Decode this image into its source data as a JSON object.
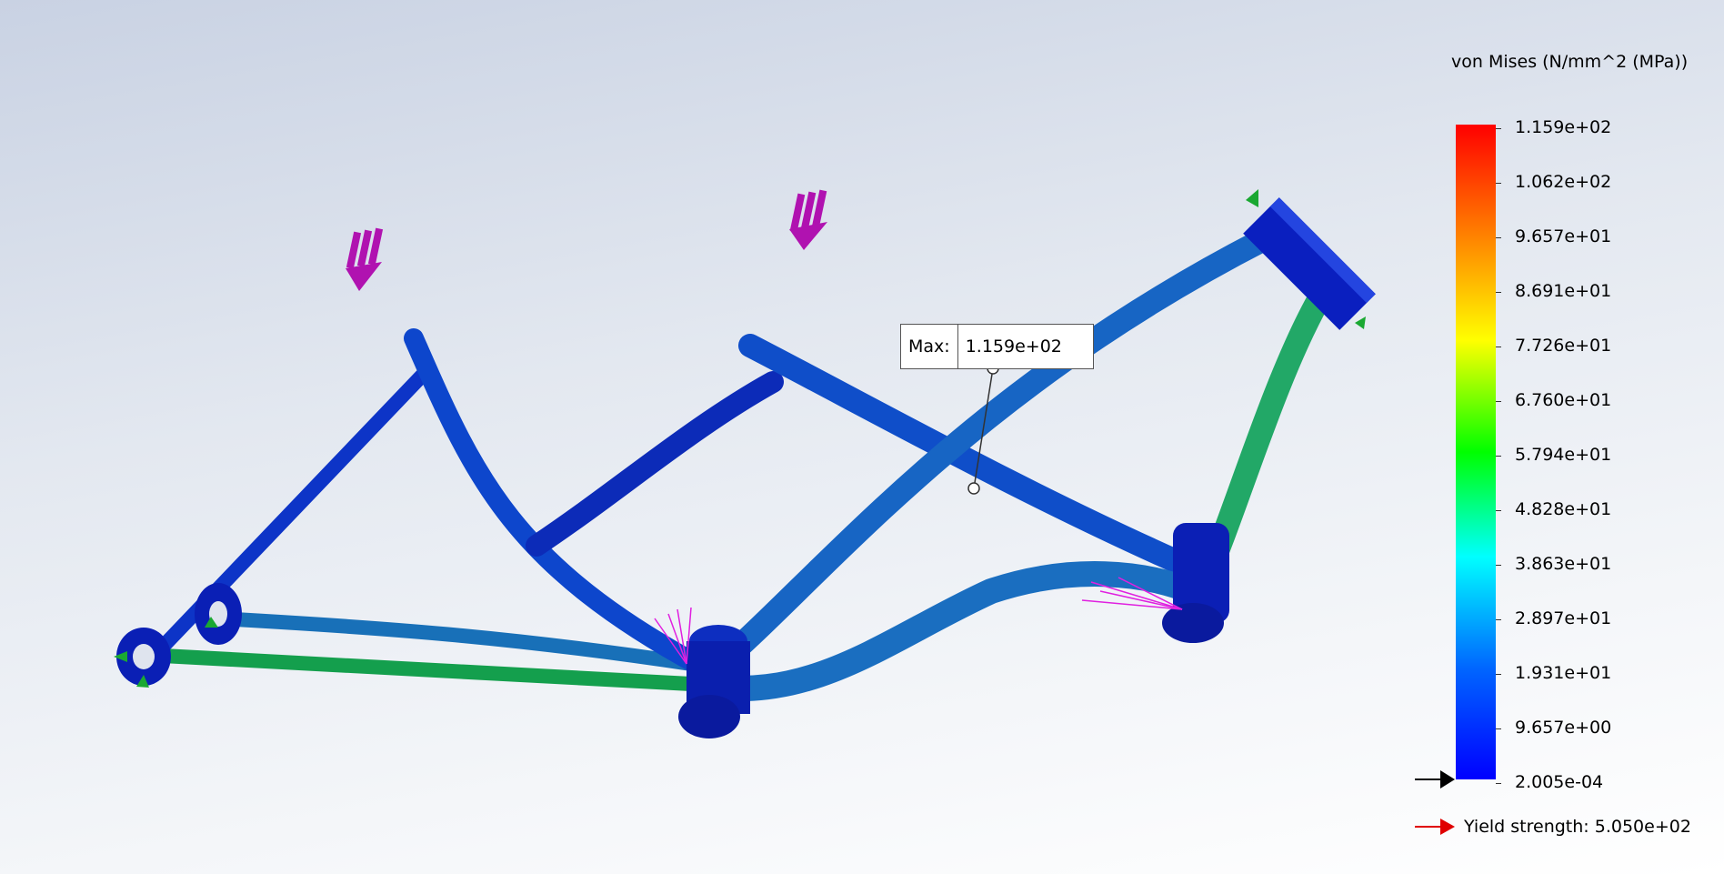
{
  "legend": {
    "title": "von Mises (N/mm^2 (MPa))",
    "ticks": [
      "1.159e+02",
      "1.062e+02",
      "9.657e+01",
      "8.691e+01",
      "7.726e+01",
      "6.760e+01",
      "5.794e+01",
      "4.828e+01",
      "3.863e+01",
      "2.897e+01",
      "1.931e+01",
      "9.657e+00",
      "2.005e-04"
    ],
    "colors": [
      "#ff0000",
      "#ff7a00",
      "#ffff00",
      "#00ff00",
      "#00ffff",
      "#0066ff",
      "#0000ff"
    ]
  },
  "yield": {
    "label": "Yield strength: 5.050e+02",
    "arrow_color": "#ff0000"
  },
  "max_probe": {
    "key": "Max:",
    "value": "1.159e+02"
  },
  "icons": {
    "load_arrow": "downward-force-arrows-icon",
    "fixture": "fixed-geometry-green-arrows-icon",
    "pointer": "legend-pointer-arrow-icon"
  }
}
